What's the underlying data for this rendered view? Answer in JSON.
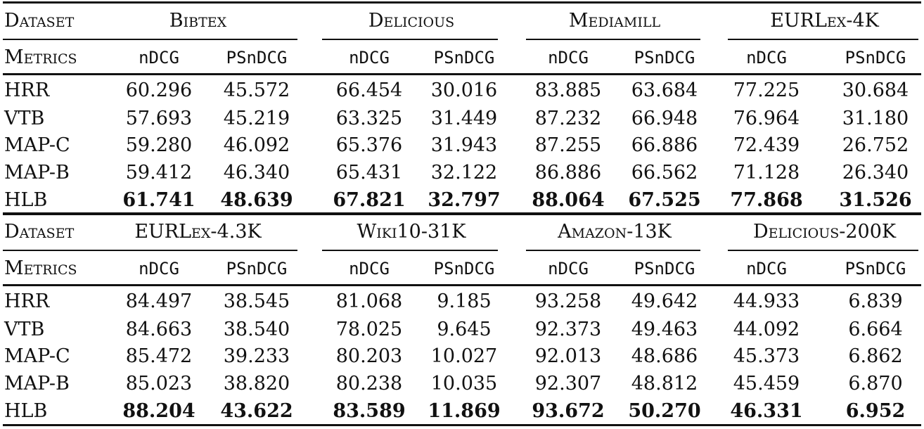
{
  "header_labels": {
    "dataset": "Dataset",
    "metrics": "Metrics"
  },
  "metric_names": [
    "nDCG",
    "PSnDCG"
  ],
  "tables": [
    {
      "datasets": [
        "Bibtex",
        "Delicious",
        "Mediamill",
        "EURLex-4K"
      ],
      "rows": [
        {
          "method": "HRR",
          "values": [
            "60.296",
            "45.572",
            "66.454",
            "30.016",
            "83.885",
            "63.684",
            "77.225",
            "30.684"
          ]
        },
        {
          "method": "VTB",
          "values": [
            "57.693",
            "45.219",
            "63.325",
            "31.449",
            "87.232",
            "66.948",
            "76.964",
            "31.180"
          ]
        },
        {
          "method": "MAP-C",
          "values": [
            "59.280",
            "46.092",
            "65.376",
            "31.943",
            "87.255",
            "66.886",
            "72.439",
            "26.752"
          ]
        },
        {
          "method": "MAP-B",
          "values": [
            "59.412",
            "46.340",
            "65.431",
            "32.122",
            "86.886",
            "66.562",
            "71.128",
            "26.340"
          ]
        },
        {
          "method": "HLB",
          "values": [
            "61.741",
            "48.639",
            "67.821",
            "32.797",
            "88.064",
            "67.525",
            "77.868",
            "31.526"
          ],
          "bold": true
        }
      ]
    },
    {
      "datasets": [
        "EURLex-4.3K",
        "Wiki10-31K",
        "Amazon-13K",
        "Delicious-200K"
      ],
      "rows": [
        {
          "method": "HRR",
          "values": [
            "84.497",
            "38.545",
            "81.068",
            "9.185",
            "93.258",
            "49.642",
            "44.933",
            "6.839"
          ]
        },
        {
          "method": "VTB",
          "values": [
            "84.663",
            "38.540",
            "78.025",
            "9.645",
            "92.373",
            "49.463",
            "44.092",
            "6.664"
          ]
        },
        {
          "method": "MAP-C",
          "values": [
            "85.472",
            "39.233",
            "80.203",
            "10.027",
            "92.013",
            "48.686",
            "45.373",
            "6.862"
          ]
        },
        {
          "method": "MAP-B",
          "values": [
            "85.023",
            "38.820",
            "80.238",
            "10.035",
            "92.307",
            "48.812",
            "45.459",
            "6.870"
          ]
        },
        {
          "method": "HLB",
          "values": [
            "88.204",
            "43.622",
            "83.589",
            "11.869",
            "93.672",
            "50.270",
            "46.331",
            "6.952"
          ],
          "bold": true
        }
      ]
    }
  ]
}
